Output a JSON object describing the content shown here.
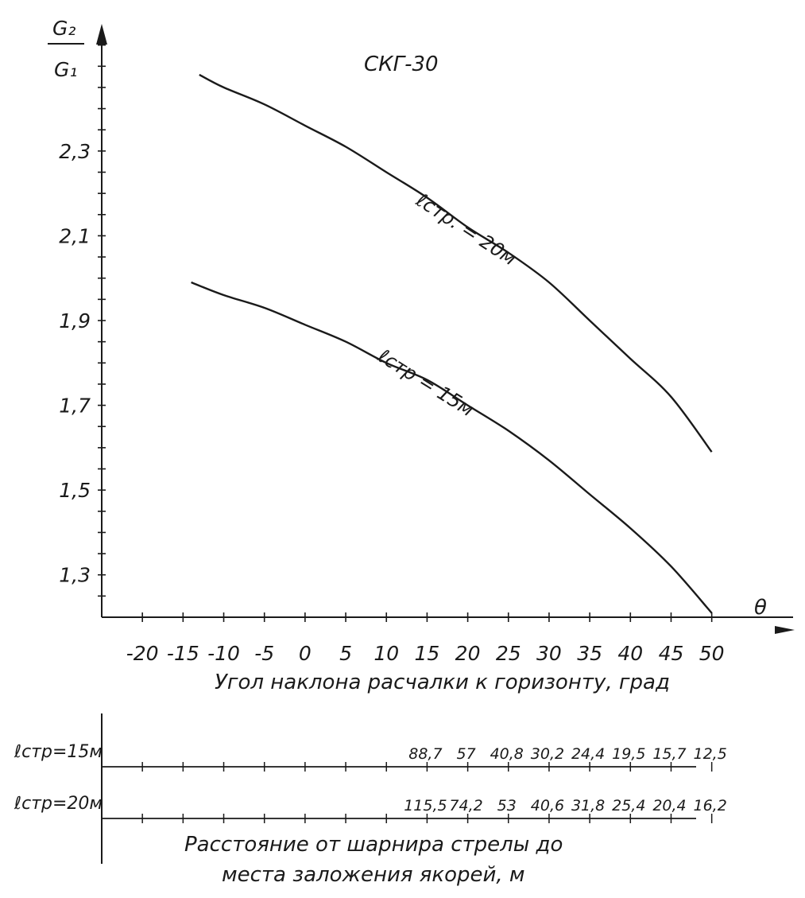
{
  "chart_data": {
    "type": "line",
    "title": "СКГ-30",
    "ylabel_num": "G₂",
    "ylabel_den": "G₁",
    "xlabel_symbol": "θ",
    "xlabel": "Угол наклона расчалки к горизонту, град",
    "xlim": [
      -25,
      60
    ],
    "ylim": [
      1.2,
      2.6
    ],
    "x_ticks": [
      -20,
      -15,
      -10,
      -5,
      0,
      5,
      10,
      15,
      20,
      25,
      30,
      35,
      40,
      45,
      50
    ],
    "x_tick_labels": [
      "-20",
      "-15",
      "-10",
      "-5",
      "0",
      "5",
      "10",
      "15",
      "20",
      "25",
      "30",
      "35",
      "40",
      "45",
      "50"
    ],
    "y_tick_labels": [
      {
        "value": 2.3,
        "label": "2,3"
      },
      {
        "value": 2.1,
        "label": "2,1"
      },
      {
        "value": 1.9,
        "label": "1,9"
      },
      {
        "value": 1.7,
        "label": "1,7"
      },
      {
        "value": 1.5,
        "label": "1,5"
      },
      {
        "value": 1.3,
        "label": "1,3"
      }
    ],
    "y_minor_step": 0.05,
    "grid": false,
    "series": [
      {
        "name": "ℓстр. = 20м",
        "x": [
          -13,
          -10,
          -5,
          0,
          5,
          10,
          15,
          20,
          25,
          30,
          35,
          40,
          45,
          50
        ],
        "y": [
          2.48,
          2.45,
          2.41,
          2.36,
          2.31,
          2.25,
          2.19,
          2.12,
          2.06,
          1.99,
          1.9,
          1.81,
          1.72,
          1.59
        ]
      },
      {
        "name": "ℓстр = 15м",
        "x": [
          -14,
          -10,
          -5,
          0,
          5,
          10,
          15,
          20,
          25,
          30,
          35,
          40,
          45,
          50
        ],
        "y": [
          1.99,
          1.96,
          1.93,
          1.89,
          1.85,
          1.8,
          1.76,
          1.7,
          1.64,
          1.57,
          1.49,
          1.41,
          1.32,
          1.21
        ]
      }
    ],
    "distance_rows": {
      "title_line1": "Расстояние от шарнира стрелы до",
      "title_line2": "места заложения якорей, м",
      "rows": [
        {
          "label": "ℓстр=15м",
          "x": [
            15,
            20,
            25,
            30,
            35,
            40,
            45,
            50
          ],
          "values": [
            "88,7",
            "57",
            "40,8",
            "30,2",
            "24,4",
            "19,5",
            "15,7",
            "12,5"
          ]
        },
        {
          "label": "ℓстр=20м",
          "x": [
            15,
            20,
            25,
            30,
            35,
            40,
            45,
            50
          ],
          "values": [
            "115,5",
            "74,2",
            "53",
            "40,6",
            "31,8",
            "25,4",
            "20,4",
            "16,2"
          ]
        }
      ]
    }
  }
}
